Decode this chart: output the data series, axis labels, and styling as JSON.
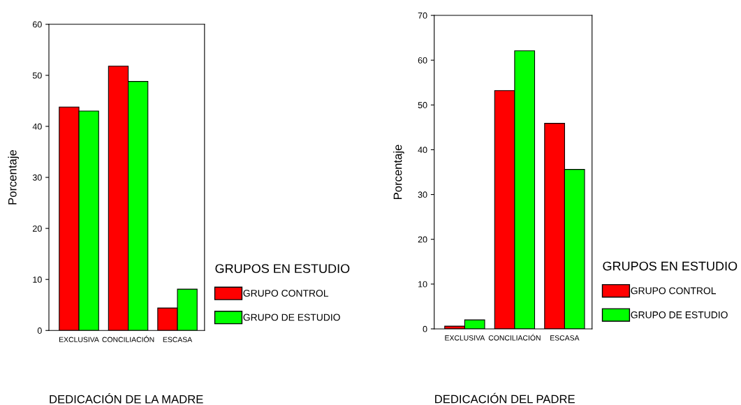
{
  "chart_data": [
    {
      "type": "bar",
      "title": "DEDICACIÓN DE LA MADRE",
      "ylabel": "Porcentaje",
      "legend_title": "GRUPOS EN ESTUDIO",
      "legend": "right",
      "categories": [
        "EXCLUSIVA",
        "CONCILIACIÓN",
        "ESCASA"
      ],
      "ylim": [
        0,
        60
      ],
      "yticks": [
        0,
        10,
        20,
        30,
        40,
        50,
        60
      ],
      "series": [
        {
          "name": "GRUPO CONTROL",
          "color": "#ff0000",
          "values": [
            43.8,
            51.8,
            4.4
          ]
        },
        {
          "name": "GRUPO DE ESTUDIO",
          "color": "#00ff00",
          "values": [
            43.0,
            48.8,
            8.1
          ]
        }
      ]
    },
    {
      "type": "bar",
      "title": "DEDICACIÓN DEL PADRE",
      "ylabel": "Porcentaje",
      "legend_title": "GRUPOS EN ESTUDIO",
      "legend": "right",
      "categories": [
        "EXCLUSIVA",
        "CONCILIACIÓN",
        "ESCASA"
      ],
      "ylim": [
        0,
        70
      ],
      "yticks": [
        0,
        10,
        20,
        30,
        40,
        50,
        60,
        70
      ],
      "series": [
        {
          "name": "GRUPO CONTROL",
          "color": "#ff0000",
          "values": [
            0.6,
            53.2,
            45.9
          ]
        },
        {
          "name": "GRUPO DE ESTUDIO",
          "color": "#00ff00",
          "values": [
            2.0,
            62.1,
            35.6
          ]
        }
      ]
    }
  ]
}
